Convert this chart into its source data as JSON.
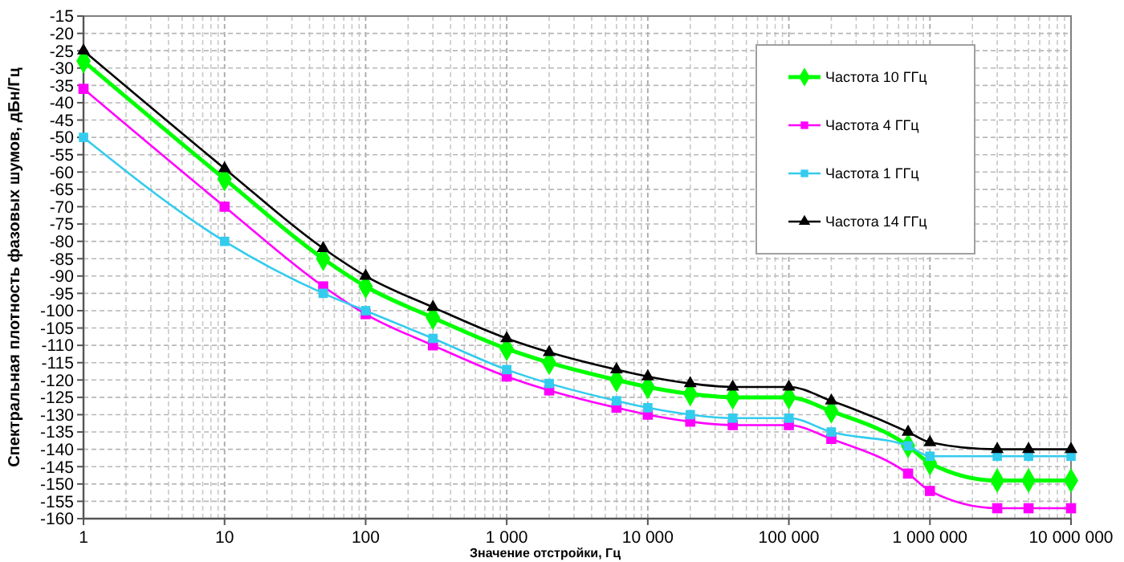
{
  "chart_data": {
    "type": "line",
    "xlabel": "Значение отстройки, Гц",
    "ylabel": "Спектральная плотность фазовых шумов, дБн/Гц",
    "log": "x",
    "grid": true,
    "legend": "top right",
    "x": [
      1,
      10,
      50,
      100,
      300,
      1000,
      2000,
      6000,
      10000,
      20000,
      40000,
      100000,
      200000,
      700000,
      1000000,
      3000000,
      5000000,
      10000000
    ],
    "xlim": [
      1,
      10000000
    ],
    "xticks": [
      1,
      10,
      100,
      {
        "value": 1000,
        "label": "1 000"
      },
      {
        "value": 10000,
        "label": "10 000"
      },
      {
        "value": 100000,
        "label": "100 000"
      },
      {
        "value": 1000000,
        "label": "1 000 000"
      },
      {
        "value": 10000000,
        "label": "10 000 000"
      }
    ],
    "ylim": [
      -160,
      -15
    ],
    "yticks": [
      -160,
      -155,
      -150,
      -145,
      -140,
      -135,
      -130,
      -125,
      -120,
      -115,
      -110,
      -105,
      -100,
      -95,
      -90,
      -85,
      -80,
      -75,
      -70,
      -65,
      -60,
      -55,
      -50,
      -45,
      -40,
      -35,
      -30,
      -25,
      -20,
      -15
    ],
    "series": [
      {
        "name": "Частота 10 ГГц",
        "color": "#00ff00",
        "marker": "diamond",
        "values": [
          -28,
          -62,
          -85,
          -93,
          -102,
          -111,
          -115,
          -120,
          -122,
          -124,
          -125,
          -125,
          -129,
          -139,
          -144,
          -149,
          -149,
          -149
        ]
      },
      {
        "name": "Частота 4 ГГц",
        "color": "#ff00ff",
        "marker": "square",
        "values": [
          -36,
          -70,
          -93,
          -101,
          -110,
          -119,
          -123,
          -128,
          -130,
          -132,
          -133,
          -133,
          -137,
          -147,
          -152,
          -157,
          -157,
          -157
        ]
      },
      {
        "name": "Частота 1 ГГц",
        "color": "#33ccee",
        "marker": "square",
        "values": [
          -50,
          -80,
          -95,
          -100,
          -108,
          -117,
          -121,
          -126,
          -128,
          -130,
          -131,
          -131,
          -135,
          -139,
          -142,
          -142,
          -142,
          -142
        ]
      },
      {
        "name": "Частота 14 ГГц",
        "color": "#000000",
        "marker": "triangle",
        "values": [
          -25,
          -59,
          -82,
          -90,
          -99,
          -108,
          -112,
          -117,
          -119,
          -121,
          -122,
          -122,
          -126,
          -135,
          -138,
          -140,
          -140,
          -140
        ]
      }
    ]
  }
}
